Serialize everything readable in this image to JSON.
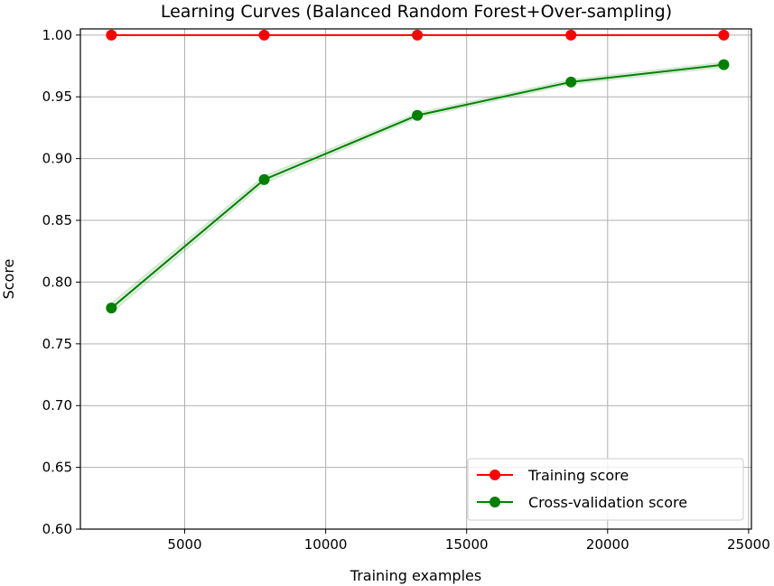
{
  "chart_data": {
    "type": "line",
    "title": "Learning Curves (Balanced Random Forest+Over-sampling)",
    "xlabel": "Training examples",
    "ylabel": "Score",
    "xlim": [
      1300,
      25100
    ],
    "ylim": [
      0.6,
      1.005
    ],
    "xticks": [
      5000,
      10000,
      15000,
      20000,
      25000
    ],
    "yticks": [
      "0.60",
      "0.65",
      "0.70",
      "0.75",
      "0.80",
      "0.85",
      "0.90",
      "0.95",
      "1.00"
    ],
    "grid": true,
    "legend_position": "lower-right",
    "x": [
      2400,
      7820,
      13250,
      18700,
      24120
    ],
    "series": [
      {
        "name": "Training score",
        "color": "#ff0000",
        "values": [
          1.0,
          1.0,
          1.0,
          1.0,
          1.0
        ],
        "band": [
          0.0,
          0.0,
          0.0,
          0.0,
          0.0
        ]
      },
      {
        "name": "Cross-validation score",
        "color": "#008000",
        "values": [
          0.779,
          0.883,
          0.935,
          0.962,
          0.976
        ],
        "band": [
          0.004,
          0.003,
          0.002,
          0.002,
          0.002
        ]
      }
    ]
  }
}
